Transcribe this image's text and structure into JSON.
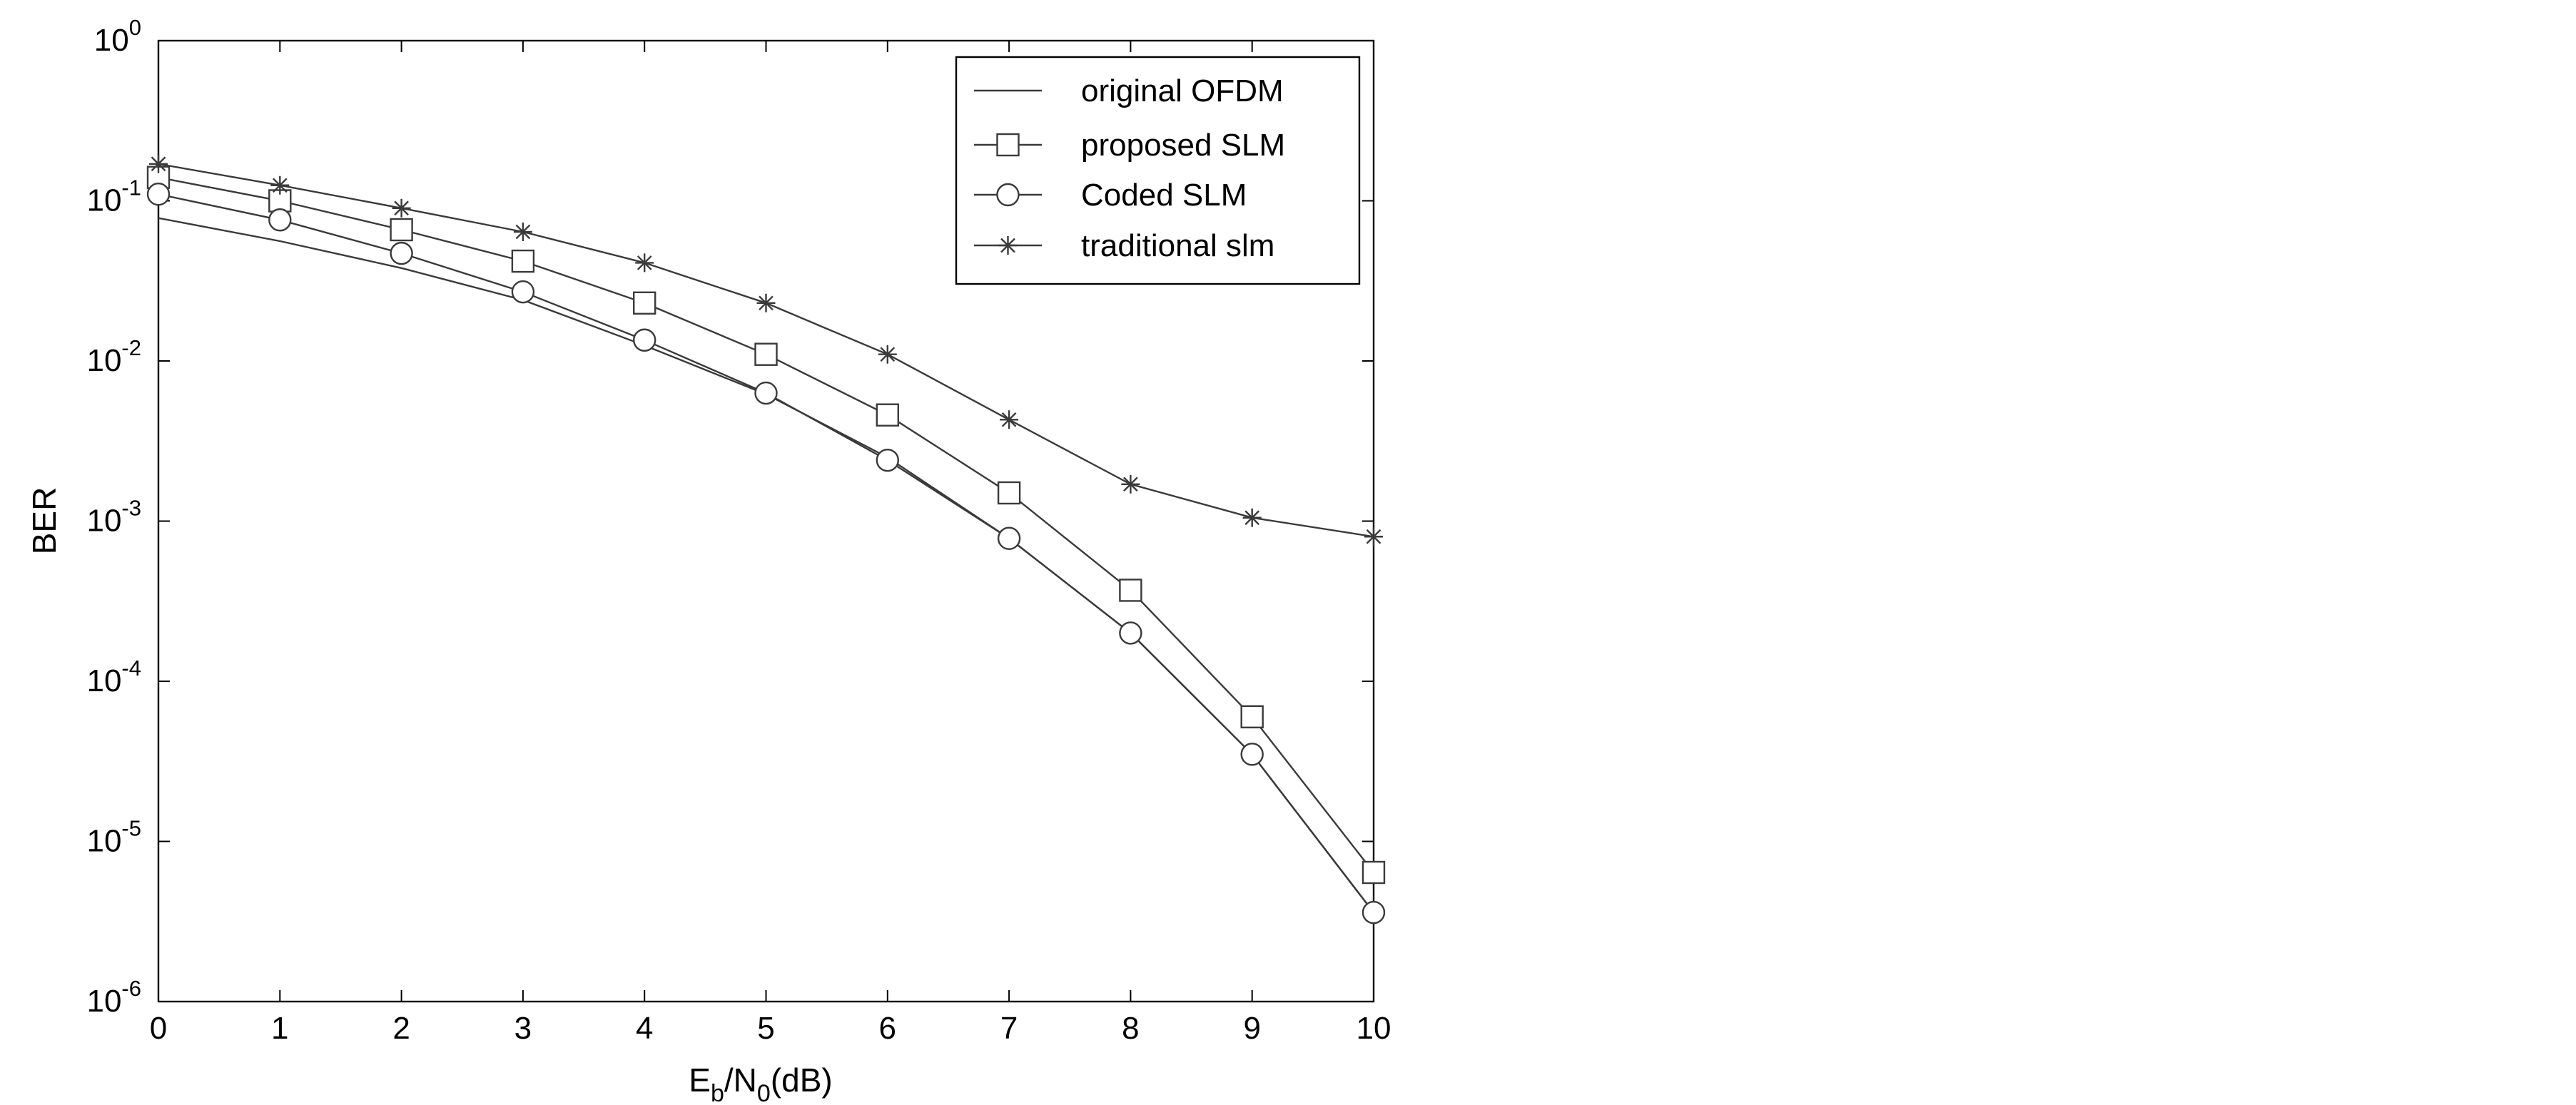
{
  "chart_data": {
    "type": "line",
    "xlabel": {
      "main": "E",
      "sub1": "b",
      "mid": "/N",
      "sub2": "0",
      "tail": "(dB)"
    },
    "ylabel": "BER",
    "x": [
      0,
      1,
      2,
      3,
      4,
      5,
      6,
      7,
      8,
      9,
      10
    ],
    "xlim": [
      0,
      10
    ],
    "ylim": [
      1e-06,
      1
    ],
    "yscale": "log",
    "grid": false,
    "legend_position": "top-right",
    "x_tick_labels": [
      "0",
      "1",
      "2",
      "3",
      "4",
      "5",
      "6",
      "7",
      "8",
      "9",
      "10"
    ],
    "y_tick_labels": [
      {
        "base": "10",
        "exp": "0",
        "value": 1
      },
      {
        "base": "10",
        "exp": "-1",
        "value": 0.1
      },
      {
        "base": "10",
        "exp": "-2",
        "value": 0.01
      },
      {
        "base": "10",
        "exp": "-3",
        "value": 0.001
      },
      {
        "base": "10",
        "exp": "-4",
        "value": 0.0001
      },
      {
        "base": "10",
        "exp": "-5",
        "value": 1e-05
      },
      {
        "base": "10",
        "exp": "-6",
        "value": 1e-06
      }
    ],
    "series": [
      {
        "name": "original OFDM",
        "marker": "none",
        "values": [
          0.078,
          0.056,
          0.038,
          0.024,
          0.0125,
          0.0062,
          0.0025,
          0.00078,
          0.0002,
          3.5e-05,
          3.6e-06
        ]
      },
      {
        "name": "proposed SLM",
        "marker": "square",
        "values": [
          0.14,
          0.1,
          0.066,
          0.042,
          0.023,
          0.011,
          0.0046,
          0.0015,
          0.00037,
          6e-05,
          6.4e-06
        ]
      },
      {
        "name": "Coded SLM",
        "marker": "circle",
        "values": [
          0.11,
          0.076,
          0.047,
          0.027,
          0.0135,
          0.0063,
          0.0024,
          0.00078,
          0.0002,
          3.5e-05,
          3.6e-06
        ]
      },
      {
        "name": "traditional slm",
        "marker": "star",
        "values": [
          0.17,
          0.125,
          0.09,
          0.064,
          0.041,
          0.023,
          0.011,
          0.0043,
          0.0017,
          0.00105,
          0.0008
        ]
      }
    ]
  }
}
